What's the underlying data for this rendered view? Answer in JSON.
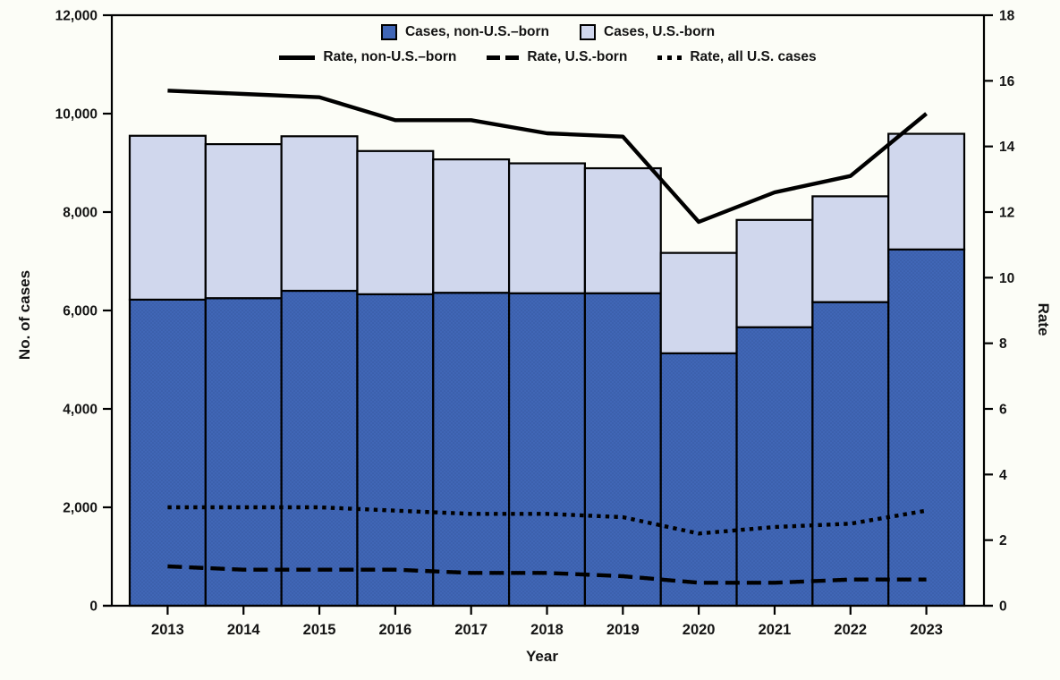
{
  "chart_data": {
    "type": "combo-stacked-bar-line",
    "categories": [
      "2013",
      "2014",
      "2015",
      "2016",
      "2017",
      "2018",
      "2019",
      "2020",
      "2021",
      "2022",
      "2023"
    ],
    "bar_series": [
      {
        "name": "Cases, non-U.S.–born",
        "color": "#4066b6",
        "values": [
          6220,
          6250,
          6400,
          6330,
          6360,
          6350,
          6350,
          5130,
          5660,
          6170,
          7240
        ]
      },
      {
        "name": "Cases, U.S.-born",
        "color": "#d0d7ed",
        "values": [
          3330,
          3130,
          3140,
          2910,
          2710,
          2640,
          2540,
          2040,
          2180,
          2150,
          2350
        ]
      }
    ],
    "line_series": [
      {
        "name": "Rate, non-U.S.–born",
        "style": "solid",
        "color": "#000000",
        "values": [
          15.7,
          15.6,
          15.5,
          14.8,
          14.8,
          14.4,
          14.3,
          11.7,
          12.6,
          13.1,
          15.0
        ]
      },
      {
        "name": "Rate, U.S.-born",
        "style": "dashed",
        "color": "#000000",
        "values": [
          1.2,
          1.1,
          1.1,
          1.1,
          1.0,
          1.0,
          0.9,
          0.7,
          0.7,
          0.8,
          0.8
        ]
      },
      {
        "name": "Rate, all U.S. cases",
        "style": "dotted",
        "color": "#000000",
        "values": [
          3.0,
          3.0,
          3.0,
          2.9,
          2.8,
          2.8,
          2.7,
          2.2,
          2.4,
          2.5,
          2.9
        ]
      }
    ],
    "left_axis": {
      "label": "No. of cases",
      "min": 0,
      "max": 12000,
      "tick_step": 2000,
      "tick_labels": [
        "0",
        "2,000",
        "4,000",
        "6,000",
        "8,000",
        "10,000",
        "12,000"
      ]
    },
    "right_axis": {
      "label": "Rate",
      "min": 0,
      "max": 18,
      "tick_step": 2,
      "tick_labels": [
        "0",
        "2",
        "4",
        "6",
        "8",
        "10",
        "12",
        "14",
        "16",
        "18"
      ]
    },
    "x_axis": {
      "label": "Year"
    },
    "legend_position": "top-inside",
    "grid": false,
    "colors": {
      "axis": "#000000",
      "text": "#141414",
      "background": "#fcfdf7"
    }
  }
}
